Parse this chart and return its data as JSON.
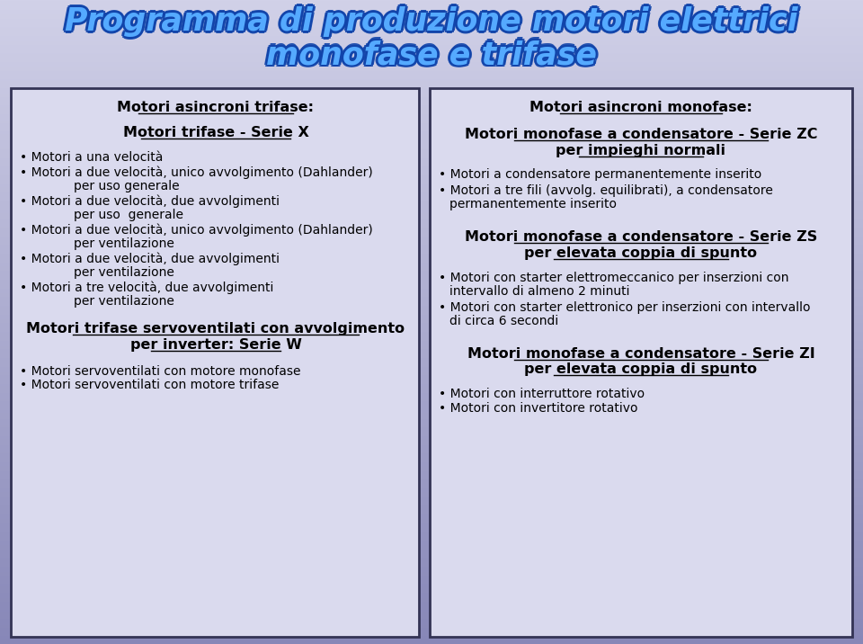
{
  "title_line1": "Programma di produzione motori elettrici",
  "title_line2": "monofase e trifase",
  "title_color": "#55AAFF",
  "title_stroke_color": "#1144AA",
  "left_header": "Motori asincroni trifase:",
  "left_sub1_header": "Motori trifase - Serie X",
  "left_sub1_items": [
    [
      "Motori a una velocità",
      ""
    ],
    [
      "Motori a due velocità, unico avvolgimento (Dahlander)",
      "per uso generale"
    ],
    [
      "Motori a due velocità, due avvolgimenti",
      "per uso  generale"
    ],
    [
      "Motori a due velocità, unico avvolgimento (Dahlander)",
      "per ventilazione"
    ],
    [
      "Motori a due velocità, due avvolgimenti",
      "per ventilazione"
    ],
    [
      "Motori a tre velocità, due avvolgimenti",
      "per ventilazione"
    ]
  ],
  "left_sub2_header_line1": "Motori trifase servoventilati con avvolgimento",
  "left_sub2_header_line2": "per inverter: Serie W",
  "left_sub2_items": [
    "Motori servoventilati con motore monofase",
    "Motori servoventilati con motore trifase"
  ],
  "right_header": "Motori asincroni monofase:",
  "right_sub1_header_line1": "Motori monofase a condensatore - Serie ZC",
  "right_sub1_header_line2": "per impieghi normali",
  "right_sub1_items": [
    [
      "Motori a condensatore permanentemente inserito",
      ""
    ],
    [
      "Motori a tre fili (avvolg. equilibrati), a condensatore",
      "permanentemente inserito"
    ]
  ],
  "right_sub2_header_line1": "Motori monofase a condensatore - Serie ZS",
  "right_sub2_header_line2": "per elevata coppia di spunto",
  "right_sub2_items": [
    [
      "Motori con starter elettromeccanico per inserzioni con",
      "intervallo di almeno 2 minuti"
    ],
    [
      "Motori con starter elettronico per inserzioni con intervallo",
      "di circa 6 secondi"
    ]
  ],
  "right_sub3_header_line1": "Motori monofase a condensatore - Serie ZI",
  "right_sub3_header_line2": "per elevata coppia di spunto",
  "right_sub3_items": [
    "Motori con interruttore rotativo",
    "Motori con invertitore rotativo"
  ]
}
